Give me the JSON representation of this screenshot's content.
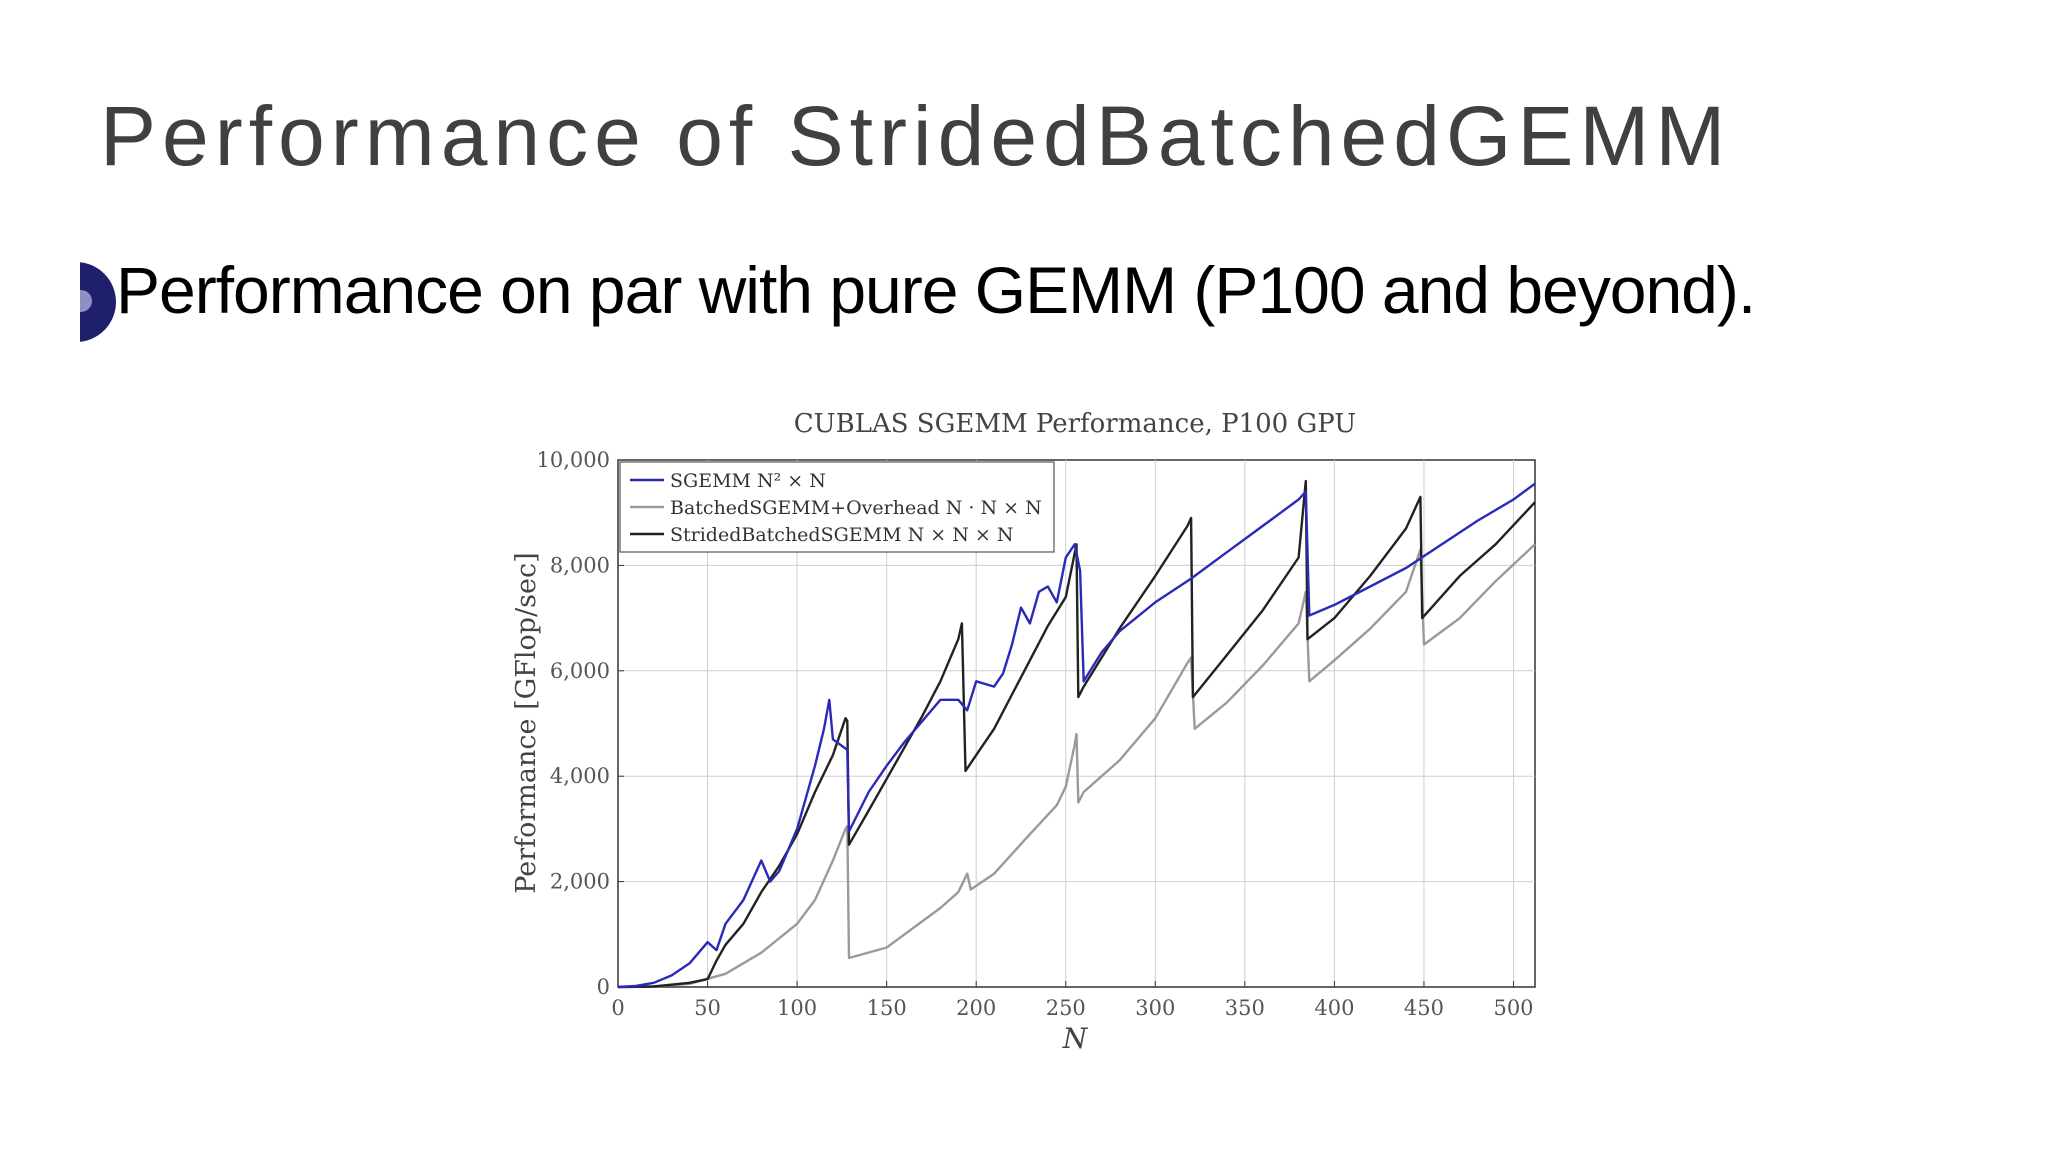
{
  "slide": {
    "title": "Performance of StridedBatchedGEMM",
    "bullet": "Performance on par with pure GEMM (P100 and beyond)."
  },
  "chart_data": {
    "type": "line",
    "title": "CUBLAS SGEMM Performance, P100 GPU",
    "xlabel": "N",
    "ylabel": "Performance [GFlop/sec]",
    "xlim": [
      0,
      512
    ],
    "ylim": [
      0,
      10000
    ],
    "xticks": [
      0,
      50,
      100,
      150,
      200,
      250,
      300,
      350,
      400,
      450,
      500
    ],
    "yticks": [
      0,
      2000,
      4000,
      6000,
      8000,
      10000
    ],
    "ytick_labels": [
      "0",
      "2,000",
      "4,000",
      "6,000",
      "8,000",
      "10,000"
    ],
    "grid": true,
    "legend_position": "top-left",
    "series": [
      {
        "name": "SGEMM N² × N",
        "color": "#2a2ab8",
        "points": [
          [
            0,
            0
          ],
          [
            10,
            20
          ],
          [
            20,
            80
          ],
          [
            30,
            220
          ],
          [
            40,
            450
          ],
          [
            50,
            850
          ],
          [
            55,
            700
          ],
          [
            60,
            1200
          ],
          [
            70,
            1650
          ],
          [
            80,
            2400
          ],
          [
            85,
            2000
          ],
          [
            90,
            2200
          ],
          [
            100,
            3000
          ],
          [
            110,
            4200
          ],
          [
            115,
            4900
          ],
          [
            118,
            5450
          ],
          [
            120,
            4700
          ],
          [
            128,
            4500
          ],
          [
            129,
            2950
          ],
          [
            140,
            3700
          ],
          [
            150,
            4200
          ],
          [
            160,
            4650
          ],
          [
            170,
            5050
          ],
          [
            180,
            5450
          ],
          [
            190,
            5450
          ],
          [
            195,
            5250
          ],
          [
            200,
            5800
          ],
          [
            210,
            5700
          ],
          [
            215,
            5950
          ],
          [
            220,
            6500
          ],
          [
            225,
            7200
          ],
          [
            230,
            6900
          ],
          [
            235,
            7500
          ],
          [
            240,
            7600
          ],
          [
            245,
            7300
          ],
          [
            250,
            8150
          ],
          [
            255,
            8400
          ],
          [
            258,
            7900
          ],
          [
            260,
            5800
          ],
          [
            270,
            6350
          ],
          [
            280,
            6750
          ],
          [
            300,
            7300
          ],
          [
            320,
            7750
          ],
          [
            340,
            8250
          ],
          [
            360,
            8750
          ],
          [
            380,
            9250
          ],
          [
            384,
            9400
          ],
          [
            386,
            7050
          ],
          [
            400,
            7250
          ],
          [
            420,
            7600
          ],
          [
            440,
            7950
          ],
          [
            460,
            8400
          ],
          [
            480,
            8850
          ],
          [
            500,
            9250
          ],
          [
            512,
            9550
          ]
        ]
      },
      {
        "name": "BatchedSGEMM+Overhead N · N × N",
        "color": "#9a9a9a",
        "points": [
          [
            0,
            0
          ],
          [
            20,
            10
          ],
          [
            40,
            60
          ],
          [
            60,
            250
          ],
          [
            80,
            650
          ],
          [
            100,
            1200
          ],
          [
            110,
            1650
          ],
          [
            120,
            2400
          ],
          [
            127,
            3000
          ],
          [
            128,
            3050
          ],
          [
            129,
            550
          ],
          [
            150,
            750
          ],
          [
            160,
            1000
          ],
          [
            170,
            1250
          ],
          [
            180,
            1500
          ],
          [
            190,
            1800
          ],
          [
            195,
            2150
          ],
          [
            197,
            1850
          ],
          [
            210,
            2150
          ],
          [
            230,
            2900
          ],
          [
            245,
            3450
          ],
          [
            250,
            3800
          ],
          [
            255,
            4600
          ],
          [
            256,
            4800
          ],
          [
            257,
            3500
          ],
          [
            260,
            3700
          ],
          [
            280,
            4300
          ],
          [
            300,
            5100
          ],
          [
            318,
            6150
          ],
          [
            320,
            6250
          ],
          [
            322,
            4900
          ],
          [
            340,
            5400
          ],
          [
            360,
            6100
          ],
          [
            380,
            6900
          ],
          [
            384,
            7500
          ],
          [
            386,
            5800
          ],
          [
            400,
            6200
          ],
          [
            420,
            6800
          ],
          [
            440,
            7500
          ],
          [
            448,
            8300
          ],
          [
            450,
            6500
          ],
          [
            470,
            7000
          ],
          [
            490,
            7700
          ],
          [
            512,
            8400
          ]
        ]
      },
      {
        "name": "StridedBatchedSGEMM N × N × N",
        "color": "#222222",
        "points": [
          [
            0,
            0
          ],
          [
            20,
            10
          ],
          [
            40,
            80
          ],
          [
            50,
            150
          ],
          [
            55,
            500
          ],
          [
            60,
            800
          ],
          [
            70,
            1200
          ],
          [
            80,
            1800
          ],
          [
            90,
            2300
          ],
          [
            100,
            2900
          ],
          [
            110,
            3700
          ],
          [
            120,
            4400
          ],
          [
            127,
            5100
          ],
          [
            128,
            5050
          ],
          [
            129,
            2700
          ],
          [
            140,
            3350
          ],
          [
            150,
            3950
          ],
          [
            160,
            4550
          ],
          [
            170,
            5150
          ],
          [
            180,
            5800
          ],
          [
            190,
            6600
          ],
          [
            192,
            6900
          ],
          [
            194,
            4100
          ],
          [
            200,
            4400
          ],
          [
            210,
            4900
          ],
          [
            220,
            5550
          ],
          [
            230,
            6200
          ],
          [
            240,
            6850
          ],
          [
            250,
            7400
          ],
          [
            256,
            8400
          ],
          [
            257,
            5500
          ],
          [
            260,
            5700
          ],
          [
            280,
            6800
          ],
          [
            300,
            7800
          ],
          [
            318,
            8750
          ],
          [
            320,
            8900
          ],
          [
            321,
            5500
          ],
          [
            340,
            6300
          ],
          [
            360,
            7150
          ],
          [
            380,
            8150
          ],
          [
            384,
            9600
          ],
          [
            385,
            6600
          ],
          [
            400,
            7000
          ],
          [
            420,
            7800
          ],
          [
            440,
            8700
          ],
          [
            448,
            9300
          ],
          [
            449,
            7000
          ],
          [
            470,
            7800
          ],
          [
            490,
            8400
          ],
          [
            512,
            9200
          ]
        ]
      }
    ]
  }
}
